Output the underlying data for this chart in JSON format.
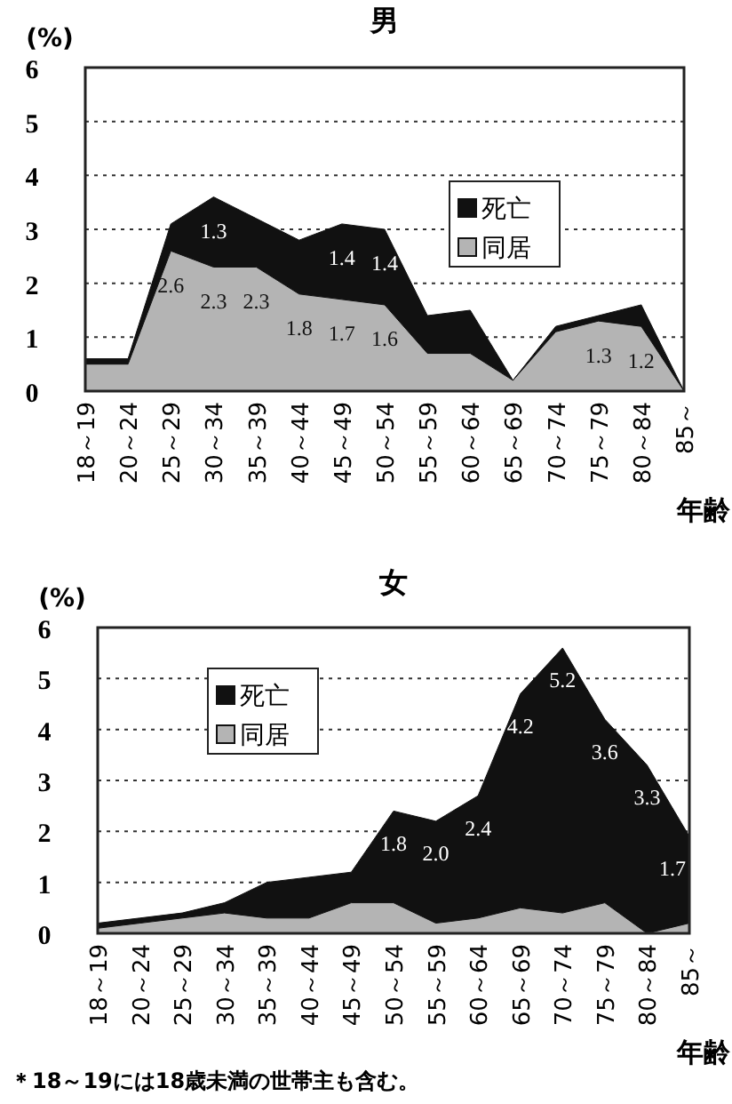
{
  "chart_data": [
    {
      "type": "area",
      "title": "男",
      "ylabel": "(%)",
      "xlabel": "年齢",
      "stacked": true,
      "grid": "y",
      "legend": "right",
      "ylim": [
        0,
        6
      ],
      "yticks": [
        0,
        1,
        2,
        3,
        4,
        5,
        6
      ],
      "categories": [
        "18～19",
        "20～24",
        "25～29",
        "30～34",
        "35～39",
        "40～44",
        "45～49",
        "50～54",
        "55～59",
        "60～64",
        "65～69",
        "70～74",
        "75～79",
        "80～84",
        "85～"
      ],
      "series": [
        {
          "name": "同居",
          "color": "#b4b4b4",
          "values": [
            0.5,
            0.5,
            2.6,
            2.3,
            2.3,
            1.8,
            1.7,
            1.6,
            0.7,
            0.7,
            0.2,
            1.1,
            1.3,
            1.2,
            0
          ],
          "value_labels": [
            null,
            null,
            "2.6",
            "2.3",
            "2.3",
            "1.8",
            "1.7",
            "1.6",
            null,
            null,
            null,
            null,
            "1.3",
            "1.2",
            null
          ]
        },
        {
          "name": "死亡",
          "color": "#111111",
          "values": [
            0.1,
            0.1,
            0.5,
            1.3,
            0.9,
            1.0,
            1.4,
            1.4,
            0.7,
            0.8,
            0,
            0.1,
            0.1,
            0.4,
            0
          ],
          "value_labels": [
            null,
            null,
            null,
            "1.3",
            null,
            null,
            "1.4",
            "1.4",
            null,
            null,
            null,
            null,
            null,
            null,
            null
          ]
        }
      ]
    },
    {
      "type": "area",
      "title": "女",
      "ylabel": "(%)",
      "xlabel": "年齢",
      "stacked": true,
      "grid": "y",
      "legend": "top left",
      "ylim": [
        0,
        6
      ],
      "yticks": [
        0,
        1,
        2,
        3,
        4,
        5,
        6
      ],
      "categories": [
        "18～19",
        "20～24",
        "25～29",
        "30～34",
        "35～39",
        "40～44",
        "45～49",
        "50～54",
        "55～59",
        "60～64",
        "65～69",
        "70～74",
        "75～79",
        "80～84",
        "85～"
      ],
      "series": [
        {
          "name": "同居",
          "color": "#b4b4b4",
          "values": [
            0.1,
            0.2,
            0.3,
            0.4,
            0.3,
            0.3,
            0.6,
            0.6,
            0.2,
            0.3,
            0.5,
            0.4,
            0.6,
            0,
            0.2
          ]
        },
        {
          "name": "死亡",
          "color": "#111111",
          "values": [
            0.1,
            0.1,
            0.1,
            0.2,
            0.7,
            0.8,
            0.6,
            1.8,
            2.0,
            2.4,
            4.2,
            5.2,
            3.6,
            3.3,
            1.7
          ],
          "value_labels": [
            null,
            null,
            null,
            null,
            null,
            null,
            null,
            "1.8",
            "2.0",
            "2.4",
            "4.2",
            "5.2",
            "3.6",
            "3.3",
            "1.7"
          ]
        }
      ],
      "annotations": [
        "＊18～19には18歳未満の世帯主も含む。"
      ]
    }
  ]
}
